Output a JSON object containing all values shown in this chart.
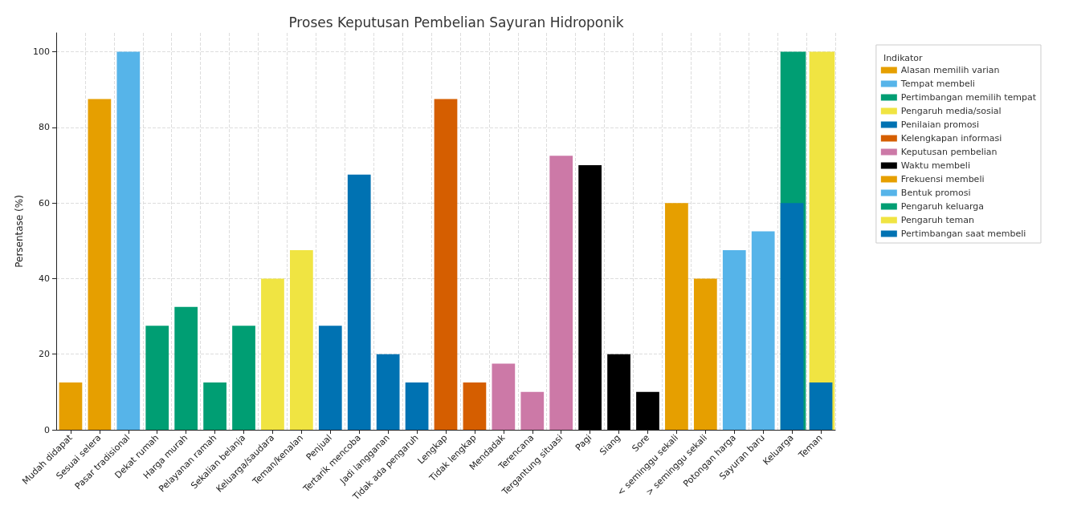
{
  "chart_data": {
    "type": "bar",
    "title": "Proses Keputusan Pembelian Sayuran Hidroponik",
    "ylabel": "Persentase (%)",
    "legend_title": "Indikator",
    "legend": "top right",
    "grid": true,
    "ylim": [
      0,
      105
    ],
    "yticks": [
      0,
      20,
      40,
      60,
      80,
      100
    ],
    "categories": [
      "Mudah didapat",
      "Sesuai selera",
      "Pasar tradisional",
      "Dekat rumah",
      "Harga murah",
      "Pelayanan ramah",
      "Sekalian belanja",
      "Keluarga/saudara",
      "Teman/kenalan",
      "Penjual",
      "Tertarik mencoba",
      "Jadi langganan",
      "Tidak ada pengaruh",
      "Lengkap",
      "Tidak lengkap",
      "Mendadak",
      "Terencana",
      "Tergantung situasi",
      "Pagi",
      "Siang",
      "Sore",
      "< seminggu sekali",
      "> seminggu sekali",
      "Potongan harga",
      "Sayuran baru",
      "Keluarga",
      "Teman"
    ],
    "series": [
      {
        "name": "Alasan memilih varian",
        "color": "#e69f00",
        "values": [
          12.5,
          87.5,
          null,
          null,
          null,
          null,
          null,
          null,
          null,
          null,
          null,
          null,
          null,
          null,
          null,
          null,
          null,
          null,
          null,
          null,
          null,
          null,
          null,
          null,
          null,
          null,
          null
        ]
      },
      {
        "name": "Tempat membeli",
        "color": "#56b4e9",
        "values": [
          null,
          null,
          100,
          null,
          null,
          null,
          null,
          null,
          null,
          null,
          null,
          null,
          null,
          null,
          null,
          null,
          null,
          null,
          null,
          null,
          null,
          null,
          null,
          null,
          null,
          null,
          null
        ]
      },
      {
        "name": "Pertimbangan memilih tempat",
        "color": "#009e73",
        "values": [
          null,
          null,
          null,
          27.5,
          32.5,
          12.5,
          27.5,
          null,
          null,
          null,
          null,
          null,
          null,
          null,
          null,
          null,
          null,
          null,
          null,
          null,
          null,
          null,
          null,
          null,
          null,
          null,
          null
        ]
      },
      {
        "name": "Pengaruh media/sosial",
        "color": "#f0e442",
        "values": [
          null,
          null,
          null,
          null,
          null,
          null,
          null,
          40,
          47.5,
          null,
          null,
          null,
          null,
          null,
          null,
          null,
          null,
          null,
          null,
          null,
          null,
          null,
          null,
          null,
          null,
          null,
          null
        ]
      },
      {
        "name": "Penilaian promosi",
        "color": "#0072b2",
        "values": [
          null,
          null,
          null,
          null,
          null,
          null,
          null,
          null,
          null,
          27.5,
          67.5,
          20,
          12.5,
          null,
          null,
          null,
          null,
          null,
          null,
          null,
          null,
          null,
          null,
          null,
          null,
          null,
          null
        ]
      },
      {
        "name": "Kelengkapan informasi",
        "color": "#d55e00",
        "values": [
          null,
          null,
          null,
          null,
          null,
          null,
          null,
          null,
          null,
          null,
          null,
          null,
          null,
          87.5,
          12.5,
          null,
          null,
          null,
          null,
          null,
          null,
          null,
          null,
          null,
          null,
          null,
          null
        ]
      },
      {
        "name": "Keputusan pembelian",
        "color": "#cc79a7",
        "values": [
          null,
          null,
          null,
          null,
          null,
          null,
          null,
          null,
          null,
          null,
          null,
          null,
          null,
          null,
          null,
          17.5,
          10,
          72.5,
          null,
          null,
          null,
          null,
          null,
          null,
          null,
          null,
          null
        ]
      },
      {
        "name": "Waktu membeli",
        "color": "#000000",
        "values": [
          null,
          null,
          null,
          null,
          null,
          null,
          null,
          null,
          null,
          null,
          null,
          null,
          null,
          null,
          null,
          null,
          null,
          null,
          70,
          20,
          10,
          null,
          null,
          null,
          null,
          null,
          null
        ]
      },
      {
        "name": "Frekuensi membeli",
        "color": "#e69f00",
        "values": [
          null,
          null,
          null,
          null,
          null,
          null,
          null,
          null,
          null,
          null,
          null,
          null,
          null,
          null,
          null,
          null,
          null,
          null,
          null,
          null,
          null,
          60,
          40,
          null,
          null,
          null,
          null
        ]
      },
      {
        "name": "Bentuk promosi",
        "color": "#56b4e9",
        "values": [
          null,
          null,
          null,
          null,
          null,
          null,
          null,
          null,
          null,
          null,
          null,
          null,
          null,
          null,
          null,
          null,
          null,
          null,
          null,
          null,
          null,
          null,
          null,
          47.5,
          52.5,
          null,
          null
        ]
      },
      {
        "name": "Pengaruh keluarga",
        "color": "#009e73",
        "values": [
          null,
          null,
          null,
          null,
          null,
          null,
          null,
          null,
          null,
          null,
          null,
          null,
          null,
          null,
          null,
          null,
          null,
          null,
          null,
          null,
          null,
          null,
          null,
          null,
          null,
          100,
          null
        ]
      },
      {
        "name": "Pengaruh teman",
        "color": "#f0e442",
        "values": [
          null,
          null,
          null,
          null,
          null,
          null,
          null,
          null,
          null,
          null,
          null,
          null,
          null,
          null,
          null,
          null,
          null,
          null,
          null,
          null,
          null,
          null,
          null,
          null,
          null,
          null,
          100
        ]
      },
      {
        "name": "Pertimbangan saat membeli",
        "color": "#0072b2",
        "values": [
          null,
          null,
          null,
          null,
          null,
          null,
          null,
          null,
          null,
          null,
          null,
          null,
          null,
          null,
          null,
          null,
          null,
          null,
          null,
          null,
          null,
          null,
          null,
          null,
          null,
          60,
          12.5
        ]
      }
    ]
  }
}
